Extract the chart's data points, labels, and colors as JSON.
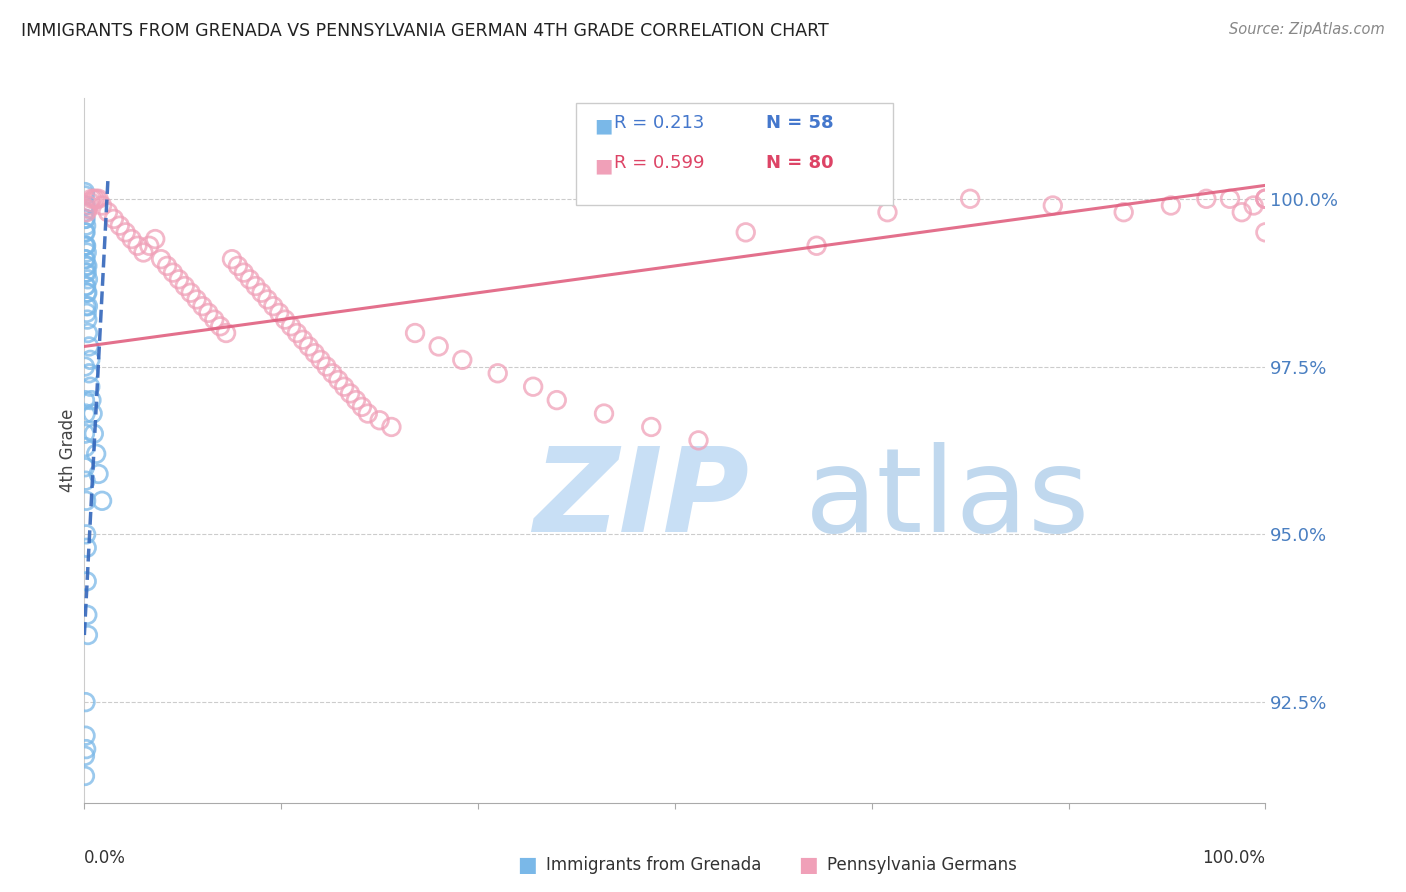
{
  "title": "IMMIGRANTS FROM GRENADA VS PENNSYLVANIA GERMAN 4TH GRADE CORRELATION CHART",
  "source": "Source: ZipAtlas.com",
  "ylabel": "4th Grade",
  "yticks": [
    92.5,
    95.0,
    97.5,
    100.0
  ],
  "ytick_labels": [
    "92.5%",
    "95.0%",
    "97.5%",
    "100.0%"
  ],
  "xlim": [
    0.0,
    100.0
  ],
  "ylim": [
    91.0,
    101.5
  ],
  "legend_blue_label": "Immigrants from Grenada",
  "legend_pink_label": "Pennsylvania Germans",
  "legend_R_blue": "R = 0.213",
  "legend_N_blue": "N = 58",
  "legend_R_pink": "R = 0.599",
  "legend_N_pink": "N = 80",
  "blue_color": "#7ab8e8",
  "pink_color": "#f0a0b8",
  "blue_edge_color": "#5599cc",
  "pink_edge_color": "#e07090",
  "blue_line_color": "#3366bb",
  "pink_line_color": "#e06080",
  "watermark_zip_color": "#c8dff5",
  "watermark_atlas_color": "#c0d8ee",
  "blue_dots_x": [
    0.05,
    0.05,
    0.05,
    0.05,
    0.05,
    0.05,
    0.05,
    0.05,
    0.1,
    0.1,
    0.1,
    0.1,
    0.1,
    0.1,
    0.1,
    0.15,
    0.15,
    0.15,
    0.15,
    0.15,
    0.2,
    0.2,
    0.2,
    0.2,
    0.25,
    0.25,
    0.25,
    0.3,
    0.3,
    0.3,
    0.4,
    0.4,
    0.5,
    0.5,
    0.6,
    0.7,
    0.8,
    1.0,
    1.2,
    1.5,
    0.05,
    0.05,
    0.05,
    0.05,
    0.1,
    0.1,
    0.1,
    0.15,
    0.15,
    0.2,
    0.2,
    0.25,
    0.3,
    0.05,
    0.05,
    0.1,
    0.1,
    0.15
  ],
  "blue_dots_y": [
    100.1,
    100.05,
    99.9,
    99.8,
    99.7,
    99.5,
    99.3,
    99.1,
    99.9,
    99.7,
    99.5,
    99.3,
    99.1,
    98.9,
    98.7,
    99.6,
    99.3,
    99.0,
    98.7,
    98.4,
    99.2,
    98.9,
    98.6,
    98.3,
    99.0,
    98.6,
    98.2,
    98.8,
    98.4,
    98.0,
    97.8,
    97.4,
    97.6,
    97.2,
    97.0,
    96.8,
    96.5,
    96.2,
    95.9,
    95.5,
    97.5,
    97.0,
    96.5,
    96.0,
    96.8,
    96.3,
    95.8,
    95.5,
    95.0,
    94.8,
    94.3,
    93.8,
    93.5,
    91.7,
    91.4,
    92.5,
    92.0,
    91.8
  ],
  "pink_dots_x": [
    0.2,
    0.3,
    0.4,
    0.5,
    0.6,
    0.8,
    1.0,
    1.2,
    1.5,
    2.0,
    2.5,
    3.0,
    3.5,
    4.0,
    4.5,
    5.0,
    5.5,
    6.0,
    6.5,
    7.0,
    7.5,
    8.0,
    8.5,
    9.0,
    9.5,
    10.0,
    10.5,
    11.0,
    11.5,
    12.0,
    12.5,
    13.0,
    13.5,
    14.0,
    14.5,
    15.0,
    15.5,
    16.0,
    16.5,
    17.0,
    17.5,
    18.0,
    18.5,
    19.0,
    19.5,
    20.0,
    20.5,
    21.0,
    21.5,
    22.0,
    22.5,
    23.0,
    23.5,
    24.0,
    25.0,
    26.0,
    28.0,
    30.0,
    32.0,
    35.0,
    38.0,
    40.0,
    44.0,
    48.0,
    52.0,
    56.0,
    62.0,
    68.0,
    75.0,
    82.0,
    88.0,
    92.0,
    95.0,
    97.0,
    98.0,
    99.0,
    100.0,
    100.0,
    100.0,
    100.0
  ],
  "pink_dots_y": [
    99.8,
    99.85,
    99.9,
    99.95,
    100.0,
    100.0,
    100.0,
    100.0,
    99.9,
    99.8,
    99.7,
    99.6,
    99.5,
    99.4,
    99.3,
    99.2,
    99.3,
    99.4,
    99.1,
    99.0,
    98.9,
    98.8,
    98.7,
    98.6,
    98.5,
    98.4,
    98.3,
    98.2,
    98.1,
    98.0,
    99.1,
    99.0,
    98.9,
    98.8,
    98.7,
    98.6,
    98.5,
    98.4,
    98.3,
    98.2,
    98.1,
    98.0,
    97.9,
    97.8,
    97.7,
    97.6,
    97.5,
    97.4,
    97.3,
    97.2,
    97.1,
    97.0,
    96.9,
    96.8,
    96.7,
    96.6,
    98.0,
    97.8,
    97.6,
    97.4,
    97.2,
    97.0,
    96.8,
    96.6,
    96.4,
    99.5,
    99.3,
    99.8,
    100.0,
    99.9,
    99.8,
    99.9,
    100.0,
    100.0,
    99.8,
    99.9,
    100.0,
    100.0,
    100.0,
    99.5
  ],
  "blue_line_x": [
    0.0,
    2.0
  ],
  "blue_line_y": [
    93.5,
    100.3
  ],
  "pink_line_x": [
    0.0,
    100.0
  ],
  "pink_line_y": [
    97.8,
    100.2
  ]
}
